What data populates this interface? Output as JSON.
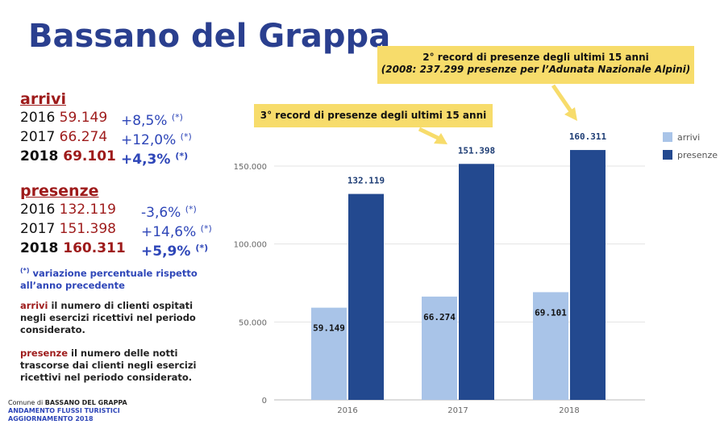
{
  "title": "Bassano del Grappa",
  "arrivi": {
    "heading": "arrivi",
    "rows": [
      {
        "year": "2016",
        "value": "59.149",
        "change": "+8,5%",
        "mark": "(*)"
      },
      {
        "year": "2017",
        "value": "66.274",
        "change": "+12,0%",
        "mark": "(*)"
      },
      {
        "year": "2018",
        "value": "69.101",
        "change": "+4,3%",
        "mark": "(*)"
      }
    ]
  },
  "presenze": {
    "heading": "presenze",
    "rows": [
      {
        "year": "2016",
        "value": "132.119",
        "change": "-3,6%",
        "mark": "(*)"
      },
      {
        "year": "2017",
        "value": "151.398",
        "change": "+14,6%",
        "mark": "(*)"
      },
      {
        "year": "2018",
        "value": "160.311",
        "change": "+5,9%",
        "mark": "(*)"
      }
    ]
  },
  "notes": {
    "variation_mark": "(*)",
    "variation_text": " variazione percentuale rispetto all’anno precedente",
    "arrivi_term": "arrivi",
    "arrivi_text": " il numero di clienti ospitati negli esercizi ricettivi nel periodo considerato.",
    "presenze_term": "presenze",
    "presenze_text": " il numero delle notti trascorse dai clienti negli esercizi ricettivi nel periodo considerato."
  },
  "footer": {
    "line1_prefix": "Comune di ",
    "line1_bold": "BASSANO DEL GRAPPA",
    "line2": "ANDAMENTO FLUSSI TURISTICI",
    "line3": "AGGIORNAMENTO 2018"
  },
  "callouts": {
    "third": "3° record di presenze degli ultimi 15 anni",
    "second_line1": "2° record di presenze degli ultimi 15 anni",
    "second_line2": "(2008: 237.299 presenze per l’Adunata Nazionale Alpini)"
  },
  "colors": {
    "title": "#2a3f8f",
    "arrivi": "#a9c4e8",
    "presenze": "#23498f",
    "accent_red": "#9e1b1b",
    "accent_blue": "#2e46b8",
    "callout": "#f7dc6b"
  },
  "chart_data": {
    "type": "bar",
    "categories": [
      "2016",
      "2017",
      "2018"
    ],
    "series": [
      {
        "name": "arrivi",
        "values": [
          59149,
          66274,
          69101
        ],
        "labels": [
          "59.149",
          "66.274",
          "69.101"
        ]
      },
      {
        "name": "presenze",
        "values": [
          132119,
          151398,
          160311
        ],
        "labels": [
          "132.119",
          "151.398",
          "160.311"
        ]
      }
    ],
    "ylim": [
      0,
      150000
    ],
    "yticks": [
      0,
      50000,
      100000,
      150000
    ],
    "ytick_labels": [
      "0",
      "50.000",
      "100.000",
      "150.000"
    ],
    "grid": true,
    "legend": "right"
  }
}
